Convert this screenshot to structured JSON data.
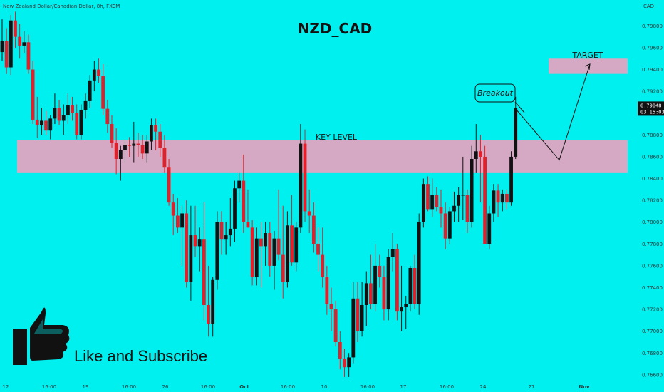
{
  "chart_data": {
    "type": "candlestick",
    "title": "NZD_CAD",
    "symbol_info": "New Zealand Dollar/Canadian Dollar, 8h, FXCM",
    "currency": "CAD",
    "background": "#00F0F0",
    "colors": {
      "up": "#111111",
      "down": "#E0202A",
      "zone": "#D5A9C4"
    },
    "ylim": [
      0.7656,
      0.7992
    ],
    "y_ticks": [
      "0.79800",
      "0.79600",
      "0.79400",
      "0.79200",
      "0.79000",
      "0.78800",
      "0.78600",
      "0.78400",
      "0.78200",
      "0.78000",
      "0.77800",
      "0.77600",
      "0.77400",
      "0.77200",
      "0.77000",
      "0.76800",
      "0.76600"
    ],
    "x_ticks": [
      "12",
      "16:00",
      "19",
      "16:00",
      "26",
      "16:00",
      "Oct",
      "16:00",
      "10",
      "16:00",
      "17",
      "16:00",
      "24",
      "27",
      "Nov"
    ],
    "last_price": "0.79048",
    "countdown": "03:15:03",
    "candles": [
      [
        0.7956,
        0.7986,
        0.7948,
        0.7966
      ],
      [
        0.7966,
        0.7978,
        0.7936,
        0.7942
      ],
      [
        0.7942,
        0.799,
        0.7935,
        0.7985
      ],
      [
        0.7985,
        0.7993,
        0.796,
        0.797
      ],
      [
        0.797,
        0.7982,
        0.795,
        0.7962
      ],
      [
        0.7962,
        0.7975,
        0.7955,
        0.7965
      ],
      [
        0.7965,
        0.7972,
        0.7936,
        0.794
      ],
      [
        0.794,
        0.7948,
        0.789,
        0.7894
      ],
      [
        0.7894,
        0.7915,
        0.7877,
        0.7889
      ],
      [
        0.7889,
        0.7905,
        0.788,
        0.7893
      ],
      [
        0.7893,
        0.7902,
        0.788,
        0.7884
      ],
      [
        0.7884,
        0.7898,
        0.7876,
        0.7895
      ],
      [
        0.7895,
        0.7918,
        0.789,
        0.7905
      ],
      [
        0.7905,
        0.7912,
        0.7889,
        0.7893
      ],
      [
        0.7893,
        0.7908,
        0.788,
        0.7898
      ],
      [
        0.7898,
        0.7918,
        0.789,
        0.7907
      ],
      [
        0.7907,
        0.7915,
        0.7893,
        0.79
      ],
      [
        0.79,
        0.7908,
        0.7876,
        0.788
      ],
      [
        0.788,
        0.7908,
        0.7876,
        0.7903
      ],
      [
        0.7903,
        0.7918,
        0.7895,
        0.7911
      ],
      [
        0.7911,
        0.7935,
        0.7905,
        0.793
      ],
      [
        0.793,
        0.7948,
        0.792,
        0.794
      ],
      [
        0.794,
        0.795,
        0.7928,
        0.7934
      ],
      [
        0.7934,
        0.7945,
        0.7898,
        0.7904
      ],
      [
        0.7904,
        0.7912,
        0.7882,
        0.789
      ],
      [
        0.789,
        0.7898,
        0.7868,
        0.7873
      ],
      [
        0.7873,
        0.7886,
        0.7844,
        0.7858
      ],
      [
        0.7858,
        0.787,
        0.7838,
        0.7866
      ],
      [
        0.7866,
        0.7876,
        0.7855,
        0.7871
      ],
      [
        0.7871,
        0.7878,
        0.786,
        0.787
      ],
      [
        0.787,
        0.7892,
        0.7855,
        0.7872
      ],
      [
        0.7872,
        0.7882,
        0.786,
        0.7871
      ],
      [
        0.7871,
        0.788,
        0.7858,
        0.7863
      ],
      [
        0.7863,
        0.788,
        0.7855,
        0.7874
      ],
      [
        0.7874,
        0.7895,
        0.7866,
        0.7889
      ],
      [
        0.7889,
        0.7895,
        0.7866,
        0.7883
      ],
      [
        0.7883,
        0.789,
        0.786,
        0.7868
      ],
      [
        0.7868,
        0.788,
        0.7845,
        0.785
      ],
      [
        0.785,
        0.7858,
        0.7815,
        0.7818
      ],
      [
        0.7818,
        0.7826,
        0.7788,
        0.7806
      ],
      [
        0.7806,
        0.7822,
        0.779,
        0.7795
      ],
      [
        0.7795,
        0.7815,
        0.776,
        0.7808
      ],
      [
        0.7808,
        0.782,
        0.774,
        0.7745
      ],
      [
        0.7745,
        0.7815,
        0.7728,
        0.7788
      ],
      [
        0.7788,
        0.7815,
        0.7768,
        0.7778
      ],
      [
        0.7778,
        0.7795,
        0.7755,
        0.7784
      ],
      [
        0.7784,
        0.7818,
        0.771,
        0.7724
      ],
      [
        0.7724,
        0.776,
        0.7695,
        0.7707
      ],
      [
        0.7707,
        0.775,
        0.7695,
        0.7747
      ],
      [
        0.7747,
        0.781,
        0.7738,
        0.78
      ],
      [
        0.78,
        0.781,
        0.777,
        0.7784
      ],
      [
        0.7784,
        0.78,
        0.777,
        0.7788
      ],
      [
        0.7788,
        0.7822,
        0.7778,
        0.7794
      ],
      [
        0.7794,
        0.7838,
        0.7782,
        0.7831
      ],
      [
        0.7831,
        0.7845,
        0.7818,
        0.7838
      ],
      [
        0.7838,
        0.7862,
        0.779,
        0.78
      ],
      [
        0.78,
        0.783,
        0.7795,
        0.7795
      ],
      [
        0.7795,
        0.7802,
        0.7742,
        0.775
      ],
      [
        0.775,
        0.7795,
        0.7742,
        0.7785
      ],
      [
        0.7785,
        0.78,
        0.774,
        0.7778
      ],
      [
        0.7778,
        0.78,
        0.776,
        0.779
      ],
      [
        0.779,
        0.78,
        0.775,
        0.776
      ],
      [
        0.776,
        0.7792,
        0.7738,
        0.7785
      ],
      [
        0.7785,
        0.783,
        0.7765,
        0.777
      ],
      [
        0.777,
        0.7815,
        0.773,
        0.7745
      ],
      [
        0.7745,
        0.781,
        0.774,
        0.7797
      ],
      [
        0.7797,
        0.7825,
        0.776,
        0.7763
      ],
      [
        0.7763,
        0.78,
        0.7755,
        0.7795
      ],
      [
        0.7795,
        0.789,
        0.779,
        0.7872
      ],
      [
        0.7872,
        0.7885,
        0.78,
        0.781
      ],
      [
        0.781,
        0.783,
        0.779,
        0.7806
      ],
      [
        0.7806,
        0.7818,
        0.7772,
        0.778
      ],
      [
        0.778,
        0.7795,
        0.7755,
        0.777
      ],
      [
        0.777,
        0.7795,
        0.774,
        0.775
      ],
      [
        0.775,
        0.776,
        0.7715,
        0.7725
      ],
      [
        0.7725,
        0.774,
        0.77,
        0.772
      ],
      [
        0.772,
        0.7728,
        0.7686,
        0.769
      ],
      [
        0.769,
        0.77,
        0.7665,
        0.7675
      ],
      [
        0.7675,
        0.7684,
        0.7658,
        0.7667
      ],
      [
        0.7667,
        0.768,
        0.7658,
        0.7676
      ],
      [
        0.7676,
        0.7745,
        0.767,
        0.773
      ],
      [
        0.773,
        0.7745,
        0.769,
        0.77
      ],
      [
        0.77,
        0.7745,
        0.7695,
        0.7724
      ],
      [
        0.7724,
        0.7755,
        0.7705,
        0.7744
      ],
      [
        0.7744,
        0.777,
        0.772,
        0.7725
      ],
      [
        0.7725,
        0.778,
        0.7718,
        0.776
      ],
      [
        0.776,
        0.777,
        0.774,
        0.775
      ],
      [
        0.775,
        0.776,
        0.771,
        0.772
      ],
      [
        0.772,
        0.7775,
        0.771,
        0.7768
      ],
      [
        0.7768,
        0.779,
        0.7755,
        0.7775
      ],
      [
        0.7775,
        0.778,
        0.771,
        0.7718
      ],
      [
        0.7718,
        0.776,
        0.77,
        0.7722
      ],
      [
        0.7722,
        0.7732,
        0.7702,
        0.7725
      ],
      [
        0.7725,
        0.776,
        0.7718,
        0.7758
      ],
      [
        0.7758,
        0.777,
        0.772,
        0.7725
      ],
      [
        0.7725,
        0.7808,
        0.7715,
        0.78
      ],
      [
        0.78,
        0.784,
        0.7795,
        0.7835
      ],
      [
        0.7835,
        0.7842,
        0.781,
        0.7812
      ],
      [
        0.7812,
        0.784,
        0.7805,
        0.7825
      ],
      [
        0.7825,
        0.7832,
        0.781,
        0.7814
      ],
      [
        0.7814,
        0.783,
        0.7795,
        0.7808
      ],
      [
        0.7808,
        0.7818,
        0.7775,
        0.7785
      ],
      [
        0.7785,
        0.7814,
        0.778,
        0.781
      ],
      [
        0.781,
        0.7828,
        0.78,
        0.7815
      ],
      [
        0.7815,
        0.7832,
        0.78,
        0.7825
      ],
      [
        0.7825,
        0.786,
        0.7802,
        0.7825
      ],
      [
        0.7825,
        0.783,
        0.779,
        0.78
      ],
      [
        0.78,
        0.787,
        0.7795,
        0.7858
      ],
      [
        0.7858,
        0.789,
        0.7845,
        0.7865
      ],
      [
        0.7865,
        0.788,
        0.7818,
        0.786
      ],
      [
        0.786,
        0.787,
        0.778,
        0.778
      ],
      [
        0.778,
        0.7815,
        0.7775,
        0.7808
      ],
      [
        0.7808,
        0.7835,
        0.78,
        0.7829
      ],
      [
        0.7829,
        0.7835,
        0.7805,
        0.7818
      ],
      [
        0.7818,
        0.783,
        0.781,
        0.7826
      ],
      [
        0.7826,
        0.783,
        0.7812,
        0.7818
      ],
      [
        0.7818,
        0.7865,
        0.7815,
        0.786
      ],
      [
        0.786,
        0.7915,
        0.7858,
        0.7905
      ]
    ],
    "zones": [
      {
        "name": "key-level",
        "from": 0.7845,
        "to": 0.7875,
        "x0": 0,
        "x1": 1
      },
      {
        "name": "target",
        "from": 0.7936,
        "to": 0.795,
        "x0": 0,
        "x1": 1
      }
    ],
    "projection": [
      [
        0.7904,
        "c0"
      ],
      [
        0.7857,
        "p1"
      ],
      [
        0.7945,
        "p2"
      ]
    ],
    "annotations": {
      "key_level_label": "KEY LEVEL",
      "target_label": "TARGET",
      "breakout_label": "Breakout",
      "cta_text": "Like and Subscribe"
    }
  }
}
